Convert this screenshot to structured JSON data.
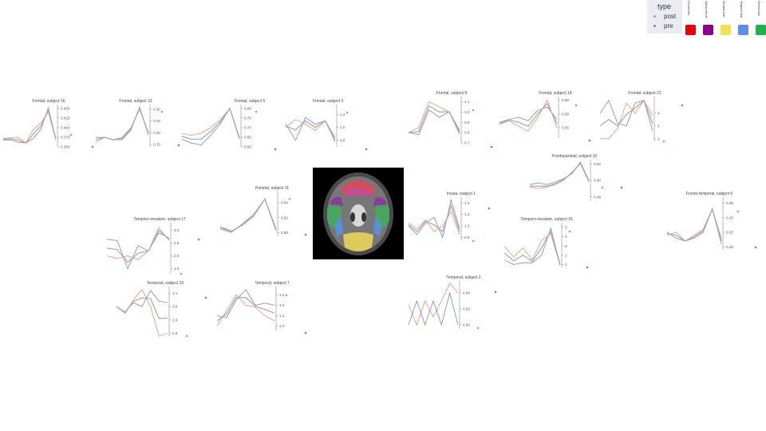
{
  "legend": {
    "title": "type",
    "items": [
      {
        "label": "post",
        "color": "#f08a5d"
      },
      {
        "label": "pre",
        "color": "#6b7fd7"
      }
    ],
    "lobes": [
      {
        "label": "Frontal lobe",
        "color": "#e8000b"
      },
      {
        "label": "Sylvian fissure",
        "color": "#8b008b"
      },
      {
        "label": "Occipital lobe",
        "color": "#f5e050"
      },
      {
        "label": "Temporal lobe",
        "color": "#5b8def"
      },
      {
        "label": "Parietal lobe",
        "color": "#22b14c"
      }
    ]
  },
  "colors": {
    "post": "#f08a5d",
    "pre": "#6b7fd7",
    "mean": "#a8a8a8"
  },
  "center_image": {
    "name": "axial-brain-mri-with-colored-lobes"
  },
  "chart_data": [
    {
      "type": "line",
      "title": "Frontal, subject 16",
      "yticks": [
        "0.450",
        "0.425",
        "0.400",
        "0.375",
        "0.350"
      ],
      "ylim": [
        0.35,
        0.46
      ],
      "series": [
        {
          "key": "post",
          "values": [
            0.372,
            0.374,
            0.375,
            0.36,
            0.395,
            0.412,
            0.44,
            0.368
          ]
        },
        {
          "key": "pre",
          "values": [
            0.368,
            0.368,
            0.362,
            0.36,
            0.372,
            0.395,
            0.452,
            0.37
          ]
        },
        {
          "key": "mean",
          "values": [
            0.37,
            0.371,
            0.368,
            0.36,
            0.383,
            0.404,
            0.446,
            0.369
          ]
        }
      ]
    },
    {
      "type": "line",
      "title": "Frontal, subject 13",
      "yticks": [
        "0.30",
        "0.25",
        "0.20",
        "0.15"
      ],
      "ylim": [
        0.14,
        0.32
      ],
      "series": [
        {
          "key": "post",
          "values": [
            0.16,
            0.18,
            0.17,
            0.17,
            0.21,
            0.31,
            0.19
          ]
        },
        {
          "key": "pre",
          "values": [
            0.18,
            0.18,
            0.17,
            0.18,
            0.22,
            0.3,
            0.2
          ]
        },
        {
          "key": "mean",
          "values": [
            0.17,
            0.18,
            0.17,
            0.175,
            0.215,
            0.305,
            0.195
          ]
        }
      ]
    },
    {
      "type": "line",
      "title": "Frontal, subject 5",
      "yticks": [
        "0.80",
        "0.75",
        "0.70",
        "0.65",
        "0.60"
      ],
      "ylim": [
        0.6,
        0.82
      ],
      "series": [
        {
          "key": "post",
          "values": [
            0.67,
            0.66,
            0.67,
            0.7,
            0.74,
            0.8,
            0.64
          ]
        },
        {
          "key": "pre",
          "values": [
            0.64,
            0.62,
            0.61,
            0.66,
            0.72,
            0.8,
            0.65
          ]
        },
        {
          "key": "mean",
          "values": [
            0.655,
            0.64,
            0.64,
            0.68,
            0.73,
            0.8,
            0.645
          ]
        }
      ]
    },
    {
      "type": "line",
      "title": "Frontal, subject 3",
      "yticks": [
        "1.2",
        "1.0",
        "0.8"
      ],
      "ylim": [
        0.7,
        1.35
      ],
      "series": [
        {
          "key": "post",
          "values": [
            1.0,
            1.12,
            1.05,
            0.95,
            1.1,
            0.85
          ]
        },
        {
          "key": "pre",
          "values": [
            1.05,
            0.8,
            1.15,
            1.05,
            1.1,
            0.78
          ]
        },
        {
          "key": "mean",
          "values": [
            1.02,
            0.96,
            1.1,
            1.0,
            1.1,
            0.81
          ]
        }
      ]
    },
    {
      "type": "line",
      "title": "Frontal, subject 8",
      "yticks": [
        "1.1",
        "1.0",
        "0.9",
        "0.8",
        "0.7"
      ],
      "ylim": [
        0.7,
        1.15
      ],
      "series": [
        {
          "key": "post",
          "values": [
            0.8,
            0.85,
            1.1,
            1.05,
            1.0,
            0.78
          ]
        },
        {
          "key": "pre",
          "values": [
            0.8,
            0.78,
            1.02,
            0.95,
            1.0,
            0.82
          ]
        },
        {
          "key": "mean",
          "values": [
            0.8,
            0.81,
            1.06,
            1.0,
            1.0,
            0.8
          ]
        }
      ]
    },
    {
      "type": "line",
      "title": "Frontal, subject 14",
      "yticks": [
        "0.60",
        "0.58",
        "0.56"
      ],
      "ylim": [
        0.545,
        0.605
      ],
      "series": [
        {
          "key": "post",
          "values": [
            0.565,
            0.57,
            0.562,
            0.555,
            0.575,
            0.6,
            0.56
          ]
        },
        {
          "key": "pre",
          "values": [
            0.568,
            0.572,
            0.575,
            0.57,
            0.585,
            0.59,
            0.572
          ]
        },
        {
          "key": "mean",
          "values": [
            0.566,
            0.571,
            0.568,
            0.562,
            0.58,
            0.595,
            0.566
          ]
        }
      ]
    },
    {
      "type": "line",
      "title": "Frontal, subject 21",
      "yticks": [
        "4",
        "3",
        "2"
      ],
      "ylim": [
        1.8,
        5.3
      ],
      "series": [
        {
          "key": "post",
          "values": [
            2.0,
            2.0,
            2.8,
            4.8,
            4.0,
            5.0,
            3.8
          ]
        },
        {
          "key": "pre",
          "values": [
            4.0,
            5.0,
            3.2,
            3.0,
            4.8,
            5.0,
            2.6
          ]
        },
        {
          "key": "mean",
          "values": [
            3.0,
            3.5,
            3.0,
            3.9,
            4.4,
            5.0,
            3.2
          ]
        }
      ]
    },
    {
      "type": "line",
      "title": "Frontoparietal, subject 10",
      "yticks": [
        "0.52",
        "0.50",
        "0.48"
      ],
      "ylim": [
        0.475,
        0.525
      ],
      "series": [
        {
          "key": "post",
          "values": [
            0.492,
            0.49,
            0.492,
            0.495,
            0.5,
            0.51,
            0.52,
            0.498
          ]
        },
        {
          "key": "pre",
          "values": [
            0.495,
            0.497,
            0.495,
            0.498,
            0.502,
            0.508,
            0.522,
            0.5
          ]
        },
        {
          "key": "mean",
          "values": [
            0.493,
            0.493,
            0.493,
            0.496,
            0.501,
            0.509,
            0.521,
            0.499
          ]
        }
      ]
    },
    {
      "type": "line",
      "title": "Parietal, subject 11",
      "yticks": [
        "0.84",
        "0.82",
        "0.80"
      ],
      "ylim": [
        0.795,
        0.855
      ],
      "series": [
        {
          "key": "post",
          "values": [
            0.805,
            0.8,
            0.812,
            0.825,
            0.845,
            0.802
          ]
        },
        {
          "key": "pre",
          "values": [
            0.808,
            0.802,
            0.81,
            0.822,
            0.845,
            0.805
          ]
        },
        {
          "key": "mean",
          "values": [
            0.806,
            0.801,
            0.811,
            0.823,
            0.845,
            0.803
          ]
        }
      ]
    },
    {
      "type": "line",
      "title": "Insula, subject 1",
      "yticks": [
        "1.4",
        "1.2",
        "1.0",
        "0.8"
      ],
      "ylim": [
        0.75,
        1.5
      ],
      "series": [
        {
          "key": "post",
          "values": [
            1.05,
            0.95,
            1.1,
            0.9,
            1.0,
            1.25,
            0.85
          ]
        },
        {
          "key": "pre",
          "values": [
            1.0,
            0.85,
            1.05,
            1.15,
            0.8,
            1.45,
            0.95
          ]
        },
        {
          "key": "mean",
          "values": [
            1.02,
            0.9,
            1.08,
            1.02,
            0.9,
            1.35,
            0.9
          ]
        }
      ]
    },
    {
      "type": "line",
      "title": "Fronto-temporal, subject 6",
      "yticks": [
        "0.25",
        "0.20",
        "0.15",
        "0.10"
      ],
      "ylim": [
        0.09,
        0.27
      ],
      "series": [
        {
          "key": "post",
          "values": [
            0.14,
            0.15,
            0.12,
            0.14,
            0.16,
            0.23,
            0.13
          ]
        },
        {
          "key": "pre",
          "values": [
            0.15,
            0.13,
            0.12,
            0.13,
            0.15,
            0.23,
            0.11
          ]
        },
        {
          "key": "mean",
          "values": [
            0.145,
            0.14,
            0.12,
            0.135,
            0.155,
            0.23,
            0.12
          ]
        }
      ]
    },
    {
      "type": "line",
      "title": "Temporo-insulaire, subject 17",
      "yticks": [
        "3.0",
        "2.5",
        "2.0",
        "1.5"
      ],
      "ylim": [
        1.3,
        3.3
      ],
      "series": [
        {
          "key": "post",
          "values": [
            2.0,
            1.9,
            2.0,
            1.85,
            2.2,
            3.1,
            2.6
          ]
        },
        {
          "key": "pre",
          "values": [
            2.65,
            2.6,
            1.5,
            2.4,
            2.2,
            2.9,
            2.7
          ]
        },
        {
          "key": "mean",
          "values": [
            2.3,
            2.25,
            1.75,
            2.1,
            2.2,
            3.0,
            2.65
          ]
        }
      ]
    },
    {
      "type": "line",
      "title": "Temporo-insulaire, subject 15",
      "yticks": [
        "5",
        "4",
        "3",
        "2",
        "1"
      ],
      "ylim": [
        0.7,
        5.5
      ],
      "series": [
        {
          "key": "post",
          "values": [
            3.0,
            1.8,
            2.8,
            1.5,
            3.6,
            4.3,
            0.9
          ]
        },
        {
          "key": "pre",
          "values": [
            1.5,
            1.0,
            1.2,
            1.2,
            2.0,
            4.9,
            1.0
          ]
        },
        {
          "key": "mean",
          "values": [
            2.25,
            1.4,
            2.0,
            1.35,
            2.8,
            4.6,
            0.95
          ]
        }
      ]
    },
    {
      "type": "line",
      "title": "Temporal, subject 19",
      "yticks": [
        "3.1",
        "3.0",
        "2.9",
        "2.8"
      ],
      "ylim": [
        2.78,
        3.15
      ],
      "series": [
        {
          "key": "post",
          "values": [
            3.0,
            2.95,
            3.05,
            3.13,
            3.0,
            2.78,
            2.8
          ]
        },
        {
          "key": "pre",
          "values": [
            3.0,
            2.96,
            3.03,
            3.0,
            3.12,
            3.04,
            3.03
          ]
        },
        {
          "key": "mean",
          "values": [
            3.0,
            2.955,
            3.04,
            3.065,
            3.06,
            2.91,
            2.915
          ]
        }
      ]
    },
    {
      "type": "line",
      "title": "Temporal, subject 7",
      "yticks": [
        "1.3",
        "1.2",
        "1.1",
        "1.0"
      ],
      "ylim": [
        0.95,
        1.38
      ],
      "series": [
        {
          "key": "post",
          "values": [
            1.0,
            1.15,
            1.3,
            1.2,
            1.18,
            1.1,
            1.05
          ]
        },
        {
          "key": "pre",
          "values": [
            1.1,
            1.08,
            1.25,
            1.35,
            1.2,
            1.22,
            1.2
          ]
        },
        {
          "key": "mean",
          "values": [
            1.05,
            1.115,
            1.275,
            1.275,
            1.19,
            1.16,
            1.125
          ]
        }
      ]
    },
    {
      "type": "line",
      "title": "Temporal, subject 2",
      "yticks": [
        "4.94",
        "4.92",
        "4.90"
      ],
      "ylim": [
        4.895,
        4.955
      ],
      "series": [
        {
          "key": "post",
          "values": [
            4.925,
            4.9,
            4.93,
            4.91,
            4.93,
            4.952,
            4.94
          ]
        },
        {
          "key": "pre",
          "values": [
            4.9,
            4.93,
            4.9,
            4.93,
            4.9,
            4.94,
            4.9
          ]
        }
      ]
    }
  ]
}
